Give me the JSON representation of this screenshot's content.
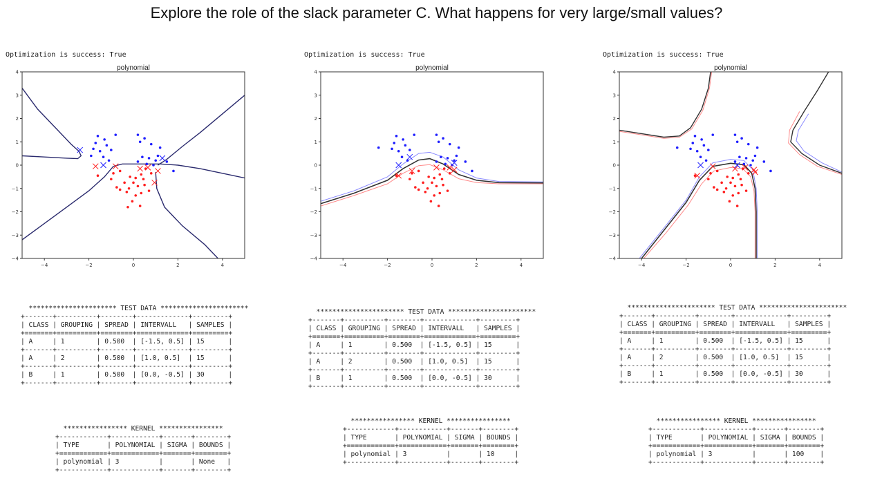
{
  "title": "Explore the role of the slack parameter C. What happens for very large/small values?",
  "panels": [
    {
      "optimization_text": "Optimization is success: True",
      "test_data": {
        "banner": "********************** TEST DATA **********************",
        "headers": [
          "CLASS",
          "GROUPING",
          "SPREAD",
          "INTERVALL",
          "SAMPLES"
        ],
        "rows": [
          [
            "A",
            "1",
            "0.500",
            "[-1.5, 0.5]",
            "15"
          ],
          [
            "A",
            "2",
            "0.500",
            "[1.0, 0.5]",
            "15"
          ],
          [
            "B",
            "1",
            "0.500",
            "[0.0, -0.5]",
            "30"
          ]
        ]
      },
      "kernel": {
        "banner": "**************** KERNEL ****************",
        "headers": [
          "TYPE",
          "POLYNOMIAL",
          "SIGMA",
          "BOUNDS"
        ],
        "rows": [
          [
            "polynomial",
            "3",
            "",
            "None"
          ]
        ]
      }
    },
    {
      "optimization_text": "Optimization is success: True",
      "test_data": {
        "banner": "********************** TEST DATA **********************",
        "headers": [
          "CLASS",
          "GROUPING",
          "SPREAD",
          "INTERVALL",
          "SAMPLES"
        ],
        "rows": [
          [
            "A",
            "1",
            "0.500",
            "[-1.5, 0.5]",
            "15"
          ],
          [
            "A",
            "2",
            "0.500",
            "[1.0, 0.5]",
            "15"
          ],
          [
            "B",
            "1",
            "0.500",
            "[0.0, -0.5]",
            "30"
          ]
        ]
      },
      "kernel": {
        "banner": "**************** KERNEL ****************",
        "headers": [
          "TYPE",
          "POLYNOMIAL",
          "SIGMA",
          "BOUNDS"
        ],
        "rows": [
          [
            "polynomial",
            "3",
            "",
            "10"
          ]
        ]
      }
    },
    {
      "optimization_text": "Optimization is success: True",
      "test_data": {
        "banner": "********************** TEST DATA **********************",
        "headers": [
          "CLASS",
          "GROUPING",
          "SPREAD",
          "INTERVALL",
          "SAMPLES"
        ],
        "rows": [
          [
            "A",
            "1",
            "0.500",
            "[-1.5, 0.5]",
            "15"
          ],
          [
            "A",
            "2",
            "0.500",
            "[1.0, 0.5]",
            "15"
          ],
          [
            "B",
            "1",
            "0.500",
            "[0.0, -0.5]",
            "30"
          ]
        ]
      },
      "kernel": {
        "banner": "**************** KERNEL ****************",
        "headers": [
          "TYPE",
          "POLYNOMIAL",
          "SIGMA",
          "BOUNDS"
        ],
        "rows": [
          [
            "polynomial",
            "3",
            "",
            "100"
          ]
        ]
      }
    }
  ],
  "chart_data": [
    {
      "type": "scatter",
      "title": "polynomial",
      "xlim": [
        -5,
        5
      ],
      "ylim": [
        -4,
        4
      ],
      "xticks": [
        -4,
        -2,
        0,
        2,
        4
      ],
      "yticks": [
        -4,
        -3,
        -2,
        -1,
        0,
        1,
        2,
        3,
        4
      ],
      "colors": {
        "class_a": "#1f1fff",
        "class_b": "#ff1f1f",
        "boundary": "#2b2b6e",
        "margin_a": "#8a8aff",
        "margin_b": "#ff8a8a"
      },
      "points_a": [
        [
          -1.6,
          1.25
        ],
        [
          -1.3,
          1.1
        ],
        [
          -1.7,
          0.95
        ],
        [
          -1.2,
          0.85
        ],
        [
          -1.8,
          0.7
        ],
        [
          -1.5,
          0.6
        ],
        [
          -1.0,
          0.65
        ],
        [
          -1.9,
          0.4
        ],
        [
          -1.35,
          0.35
        ],
        [
          -0.8,
          1.3
        ],
        [
          -1.1,
          0.2
        ],
        [
          0.2,
          1.3
        ],
        [
          0.5,
          1.15
        ],
        [
          0.3,
          1.0
        ],
        [
          0.8,
          0.9
        ],
        [
          1.2,
          0.75
        ],
        [
          0.4,
          0.35
        ],
        [
          0.7,
          0.3
        ],
        [
          1.0,
          0.2
        ],
        [
          1.5,
          0.15
        ],
        [
          0.2,
          0.15
        ],
        [
          0.6,
          0.05
        ],
        [
          1.8,
          -0.25
        ],
        [
          0.9,
          0.0
        ],
        [
          1.1,
          0.4
        ]
      ],
      "points_b": [
        [
          -1.6,
          -0.45
        ],
        [
          -1.0,
          -0.6
        ],
        [
          -0.6,
          -0.25
        ],
        [
          -0.4,
          -0.75
        ],
        [
          -0.15,
          -0.5
        ],
        [
          0.1,
          -0.55
        ],
        [
          0.35,
          -0.4
        ],
        [
          0.55,
          -0.15
        ],
        [
          0.8,
          -0.35
        ],
        [
          -0.2,
          -1.0
        ],
        [
          0.2,
          -0.9
        ],
        [
          0.5,
          -0.85
        ],
        [
          0.7,
          -1.1
        ],
        [
          -0.6,
          -1.05
        ],
        [
          -0.3,
          -1.15
        ],
        [
          0.1,
          -1.3
        ],
        [
          0.35,
          -1.2
        ],
        [
          -0.05,
          -1.55
        ],
        [
          0.3,
          -1.75
        ],
        [
          -0.25,
          -1.8
        ],
        [
          -0.75,
          -0.95
        ],
        [
          -0.9,
          -0.35
        ],
        [
          0.45,
          -0.6
        ],
        [
          0.0,
          -0.75
        ]
      ],
      "support_vectors": [
        [
          -2.4,
          0.65
        ],
        [
          -1.7,
          -0.05
        ],
        [
          -1.35,
          0.0
        ],
        [
          -0.8,
          -0.05
        ],
        [
          0.3,
          -0.15
        ],
        [
          0.65,
          -0.1
        ],
        [
          1.1,
          -0.25
        ],
        [
          1.3,
          0.3
        ],
        [
          0.95,
          -0.75
        ]
      ]
    },
    {
      "type": "scatter",
      "title": "polynomial",
      "xlim": [
        -5,
        5
      ],
      "ylim": [
        -4,
        4
      ],
      "xticks": [
        -4,
        -2,
        0,
        2,
        4
      ],
      "yticks": [
        -4,
        -3,
        -2,
        -1,
        0,
        1,
        2,
        3,
        4
      ],
      "colors": {
        "class_a": "#1f1fff",
        "class_b": "#ff1f1f",
        "boundary": "#333333",
        "margin_a": "#8a8aff",
        "margin_b": "#ff8a8a"
      },
      "points_a": [
        [
          -1.6,
          1.25
        ],
        [
          -1.3,
          1.1
        ],
        [
          -1.7,
          0.95
        ],
        [
          -1.2,
          0.85
        ],
        [
          -1.8,
          0.7
        ],
        [
          -1.5,
          0.6
        ],
        [
          -1.0,
          0.65
        ],
        [
          -2.4,
          0.75
        ],
        [
          -1.35,
          0.35
        ],
        [
          -0.8,
          1.3
        ],
        [
          -1.1,
          0.2
        ],
        [
          0.2,
          1.3
        ],
        [
          0.5,
          1.15
        ],
        [
          0.3,
          1.0
        ],
        [
          0.8,
          0.9
        ],
        [
          1.2,
          0.75
        ],
        [
          0.4,
          0.35
        ],
        [
          0.7,
          0.3
        ],
        [
          1.0,
          0.2
        ],
        [
          1.5,
          0.15
        ],
        [
          0.2,
          0.15
        ],
        [
          0.6,
          0.05
        ],
        [
          1.8,
          -0.25
        ],
        [
          0.9,
          0.0
        ],
        [
          1.1,
          0.4
        ]
      ],
      "points_b": [
        [
          -1.6,
          -0.45
        ],
        [
          -1.0,
          -0.6
        ],
        [
          -0.6,
          -0.25
        ],
        [
          -0.4,
          -0.75
        ],
        [
          -0.15,
          -0.5
        ],
        [
          0.1,
          -0.55
        ],
        [
          0.35,
          -0.4
        ],
        [
          0.55,
          -0.15
        ],
        [
          0.8,
          -0.35
        ],
        [
          -0.2,
          -1.0
        ],
        [
          0.2,
          -0.9
        ],
        [
          0.5,
          -0.85
        ],
        [
          0.7,
          -1.1
        ],
        [
          -0.6,
          -1.05
        ],
        [
          -0.3,
          -1.15
        ],
        [
          0.1,
          -1.3
        ],
        [
          0.35,
          -1.2
        ],
        [
          -0.05,
          -1.55
        ],
        [
          0.3,
          -1.75
        ],
        [
          -0.75,
          -0.95
        ],
        [
          -0.9,
          -0.35
        ],
        [
          0.45,
          -0.6
        ],
        [
          0.0,
          -0.75
        ]
      ],
      "support_vectors": [
        [
          -1.5,
          0.0
        ],
        [
          -1.0,
          0.35
        ],
        [
          -0.9,
          -0.25
        ],
        [
          -1.5,
          -0.45
        ],
        [
          0.2,
          -0.1
        ],
        [
          0.8,
          -0.1
        ],
        [
          1.0,
          -0.2
        ],
        [
          1.0,
          0.1
        ]
      ]
    },
    {
      "type": "scatter",
      "title": "polynomial",
      "xlim": [
        -5,
        5
      ],
      "ylim": [
        -4,
        4
      ],
      "xticks": [
        -4,
        -2,
        0,
        2,
        4
      ],
      "yticks": [
        -4,
        -3,
        -2,
        -1,
        0,
        1,
        2,
        3,
        4
      ],
      "colors": {
        "class_a": "#1f1fff",
        "class_b": "#ff1f1f",
        "boundary": "#333333",
        "margin_a": "#8a8aff",
        "margin_b": "#ff8a8a"
      },
      "points_a": [
        [
          -1.6,
          1.25
        ],
        [
          -1.3,
          1.1
        ],
        [
          -1.7,
          0.95
        ],
        [
          -1.2,
          0.85
        ],
        [
          -1.8,
          0.7
        ],
        [
          -1.5,
          0.6
        ],
        [
          -1.0,
          0.65
        ],
        [
          -2.4,
          0.75
        ],
        [
          -1.35,
          0.35
        ],
        [
          -0.8,
          1.3
        ],
        [
          -1.1,
          0.2
        ],
        [
          0.2,
          1.3
        ],
        [
          0.5,
          1.15
        ],
        [
          0.3,
          1.0
        ],
        [
          0.8,
          0.9
        ],
        [
          1.2,
          0.75
        ],
        [
          0.4,
          0.35
        ],
        [
          0.7,
          0.3
        ],
        [
          1.0,
          0.2
        ],
        [
          1.5,
          0.15
        ],
        [
          0.2,
          0.15
        ],
        [
          0.6,
          0.05
        ],
        [
          1.8,
          -0.25
        ],
        [
          0.9,
          0.0
        ],
        [
          1.1,
          0.4
        ]
      ],
      "points_b": [
        [
          -1.6,
          -0.45
        ],
        [
          -1.0,
          -0.6
        ],
        [
          -0.6,
          -0.25
        ],
        [
          -0.4,
          -0.75
        ],
        [
          -0.15,
          -0.5
        ],
        [
          0.1,
          -0.55
        ],
        [
          0.35,
          -0.4
        ],
        [
          0.55,
          -0.15
        ],
        [
          0.8,
          -0.35
        ],
        [
          -0.2,
          -1.0
        ],
        [
          0.2,
          -0.9
        ],
        [
          0.5,
          -0.85
        ],
        [
          0.7,
          -1.1
        ],
        [
          -0.6,
          -1.05
        ],
        [
          -0.3,
          -1.15
        ],
        [
          0.1,
          -1.3
        ],
        [
          0.35,
          -1.2
        ],
        [
          -0.05,
          -1.55
        ],
        [
          0.3,
          -1.75
        ],
        [
          -0.75,
          -0.95
        ],
        [
          -0.9,
          -0.35
        ],
        [
          0.45,
          -0.6
        ],
        [
          0.0,
          -0.75
        ]
      ],
      "support_vectors": [
        [
          -1.5,
          -0.45
        ],
        [
          -1.35,
          0.0
        ],
        [
          -0.8,
          -0.05
        ],
        [
          0.2,
          -0.15
        ],
        [
          0.65,
          -0.1
        ],
        [
          1.1,
          -0.3
        ],
        [
          1.05,
          -0.2
        ],
        [
          0.3,
          0.0
        ]
      ]
    }
  ]
}
